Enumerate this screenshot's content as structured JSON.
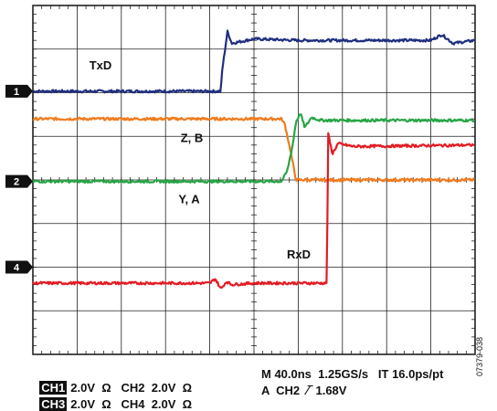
{
  "chart_data": {
    "type": "line",
    "title": "",
    "xlabel": "",
    "ylabel": "",
    "grid": true,
    "grid_divisions": {
      "x": 10,
      "y": 8
    },
    "xlim": [
      0,
      400
    ],
    "x_unit": "ns",
    "series": [
      {
        "name": "TxD",
        "channel_marker": "1",
        "color": "#1f2f7f",
        "x": [
          0,
          170,
          171,
          176,
          180,
          200,
          240,
          360,
          370,
          380,
          400
        ],
        "y": [
          5.05,
          5.05,
          5.7,
          7.1,
          6.7,
          6.85,
          6.8,
          6.8,
          7.0,
          6.7,
          6.8
        ]
      },
      {
        "name": "Z, B",
        "color": "#f07b1d",
        "x": [
          0,
          225,
          228,
          233,
          238,
          400
        ],
        "y": [
          4.1,
          4.1,
          3.9,
          3.0,
          2.0,
          2.0
        ]
      },
      {
        "name": "Y, A",
        "color": "#27a545",
        "x": [
          0,
          225,
          230,
          235,
          238,
          242,
          246,
          252,
          260,
          400
        ],
        "y": [
          1.95,
          1.95,
          2.3,
          3.2,
          4.0,
          4.3,
          3.8,
          4.15,
          4.05,
          4.05
        ]
      },
      {
        "name": "RxD",
        "channel_marker": "4",
        "color": "#e31b23",
        "x": [
          0,
          160,
          165,
          170,
          175,
          180,
          200,
          266,
          267,
          271,
          276,
          290,
          400
        ],
        "y": [
          -1.55,
          -1.55,
          -1.4,
          -1.75,
          -1.5,
          -1.6,
          -1.55,
          -1.55,
          3.6,
          2.9,
          3.25,
          3.15,
          3.2
        ]
      }
    ],
    "channel_markers": [
      "1",
      "2",
      "4"
    ],
    "annotations": [
      "TxD",
      "Z, B",
      "Y, A",
      "RxD"
    ]
  },
  "status": {
    "ch1_tag": "CH1",
    "ch1_settings": "2.0V  Ω   CH2  2.0V  Ω",
    "ch3_tag": "CH3",
    "ch3_settings": "2.0V  Ω   CH4  2.0V  Ω",
    "timebase": "M 40.0ns  1.25GS/s   IT 16.0ps/pt",
    "trigger": "A  CH2  ∕‾ 1.68V"
  },
  "figure_id": "07379-038"
}
